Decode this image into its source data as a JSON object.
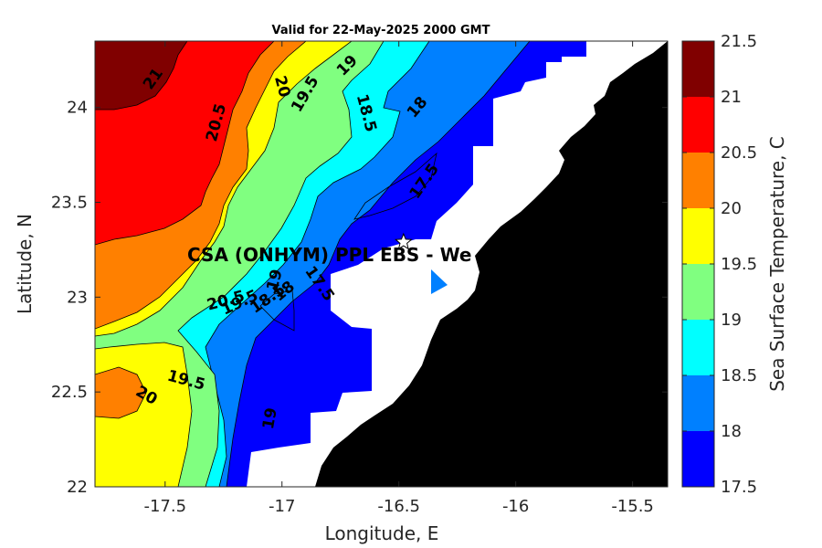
{
  "chart_data": {
    "type": "heatmap",
    "title": "Valid for 22-May-2025 2000 GMT",
    "xlabel": "Longitude, E",
    "ylabel": "Latitude, N",
    "xlim": [
      -17.8,
      -15.35
    ],
    "ylim": [
      22,
      24.35
    ],
    "x_ticks": [
      -17.5,
      -17,
      -16.5,
      -16,
      -15.5
    ],
    "x_tick_labels": [
      "-17.5",
      "-17",
      "-16.5",
      "-16",
      "-15.5"
    ],
    "y_ticks": [
      22,
      22.5,
      23,
      23.5,
      24
    ],
    "y_tick_labels": [
      "22",
      "22.5",
      "23",
      "23.5",
      "24"
    ],
    "colorbar": {
      "label": "Sea Surface Temperature, C",
      "levels": [
        17.5,
        18,
        18.5,
        19,
        19.5,
        20,
        20.5,
        21,
        21.5
      ],
      "level_labels": [
        "17.5",
        "18",
        "18.5",
        "19",
        "19.5",
        "20",
        "20.5",
        "21",
        "21.5"
      ],
      "colors": [
        "#0000ff",
        "#0080ff",
        "#00ffff",
        "#80ff80",
        "#ffff00",
        "#ff8000",
        "#ff0000",
        "#800000"
      ]
    },
    "contour_labels": [
      {
        "text": "21",
        "lon": -17.55,
        "lat": 24.15,
        "angle": -55
      },
      {
        "text": "20.5",
        "lon": -17.28,
        "lat": 23.92,
        "angle": -75
      },
      {
        "text": "20",
        "lon": -17.0,
        "lat": 24.11,
        "angle": 75
      },
      {
        "text": "19.5",
        "lon": -16.9,
        "lat": 24.07,
        "angle": -60
      },
      {
        "text": "19",
        "lon": -16.72,
        "lat": 24.22,
        "angle": -45
      },
      {
        "text": "18.5",
        "lon": -16.64,
        "lat": 23.97,
        "angle": 75
      },
      {
        "text": "18",
        "lon": -16.42,
        "lat": 24.0,
        "angle": -50
      },
      {
        "text": "17.5",
        "lon": -16.39,
        "lat": 23.61,
        "angle": -55
      },
      {
        "text": "20.5",
        "lon": -17.24,
        "lat": 22.98,
        "angle": -15
      },
      {
        "text": "19.5",
        "lon": -17.18,
        "lat": 22.97,
        "angle": -25
      },
      {
        "text": "19",
        "lon": -17.03,
        "lat": 23.09,
        "angle": -75
      },
      {
        "text": "18.5",
        "lon": -17.06,
        "lat": 22.99,
        "angle": -35
      },
      {
        "text": "18",
        "lon": -16.99,
        "lat": 23.03,
        "angle": -40
      },
      {
        "text": "17.5",
        "lon": -16.84,
        "lat": 23.07,
        "angle": 55
      },
      {
        "text": "19.5",
        "lon": -17.41,
        "lat": 22.56,
        "angle": 15
      },
      {
        "text": "20",
        "lon": -17.58,
        "lat": 22.48,
        "angle": 30
      },
      {
        "text": "19",
        "lon": -17.05,
        "lat": 22.36,
        "angle": -80
      }
    ],
    "site": {
      "label": "CSA (ONHYM) PPL EBS  - We",
      "lon": -16.48,
      "lat": 23.29
    }
  },
  "colors": {
    "land": "#000000",
    "nodata": "#ffffff",
    "marker": "#ffffff"
  }
}
